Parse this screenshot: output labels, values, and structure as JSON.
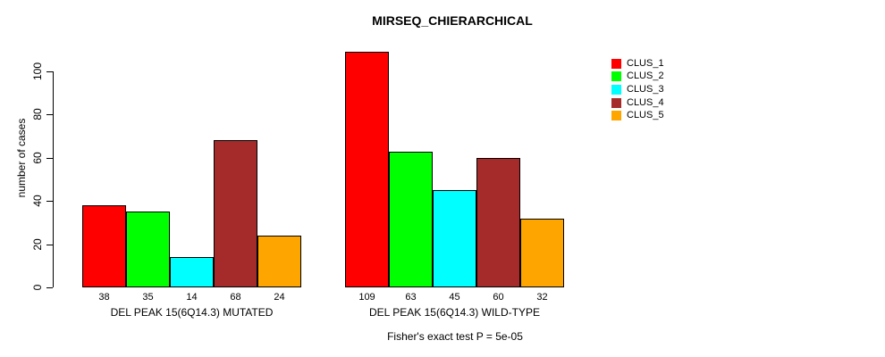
{
  "title": "MIRSEQ_CHIERARCHICAL",
  "footer": "Fisher's exact test P = 5e-05",
  "chart_data": {
    "type": "bar",
    "title": "MIRSEQ_CHIERARCHICAL",
    "xlabel": "",
    "ylabel": "number of cases",
    "ylim": [
      0,
      109
    ],
    "yticks": [
      0,
      20,
      40,
      60,
      80,
      100
    ],
    "grid": false,
    "legend_position": "top-right",
    "legend": [
      "CLUS_1",
      "CLUS_2",
      "CLUS_3",
      "CLUS_4",
      "CLUS_5"
    ],
    "series_colors": [
      "#FF0000",
      "#00FF00",
      "#00FFFF",
      "#A52A2A",
      "#FFA500"
    ],
    "bar_border_color": "#000000",
    "groups": [
      {
        "label": "DEL PEAK 15(6Q14.3) MUTATED",
        "series": [
          "CLUS_1",
          "CLUS_2",
          "CLUS_3",
          "CLUS_4",
          "CLUS_5"
        ],
        "values": [
          38,
          35,
          14,
          68,
          24
        ]
      },
      {
        "label": "DEL PEAK 15(6Q14.3) WILD-TYPE",
        "series": [
          "CLUS_1",
          "CLUS_2",
          "CLUS_3",
          "CLUS_4",
          "CLUS_5"
        ],
        "values": [
          109,
          63,
          45,
          60,
          32
        ]
      }
    ],
    "bar_value_labels": [
      [
        38,
        35,
        14,
        68,
        24
      ],
      [
        109,
        63,
        45,
        60,
        32
      ]
    ],
    "annotation": "Fisher's exact test P = 5e-05"
  }
}
